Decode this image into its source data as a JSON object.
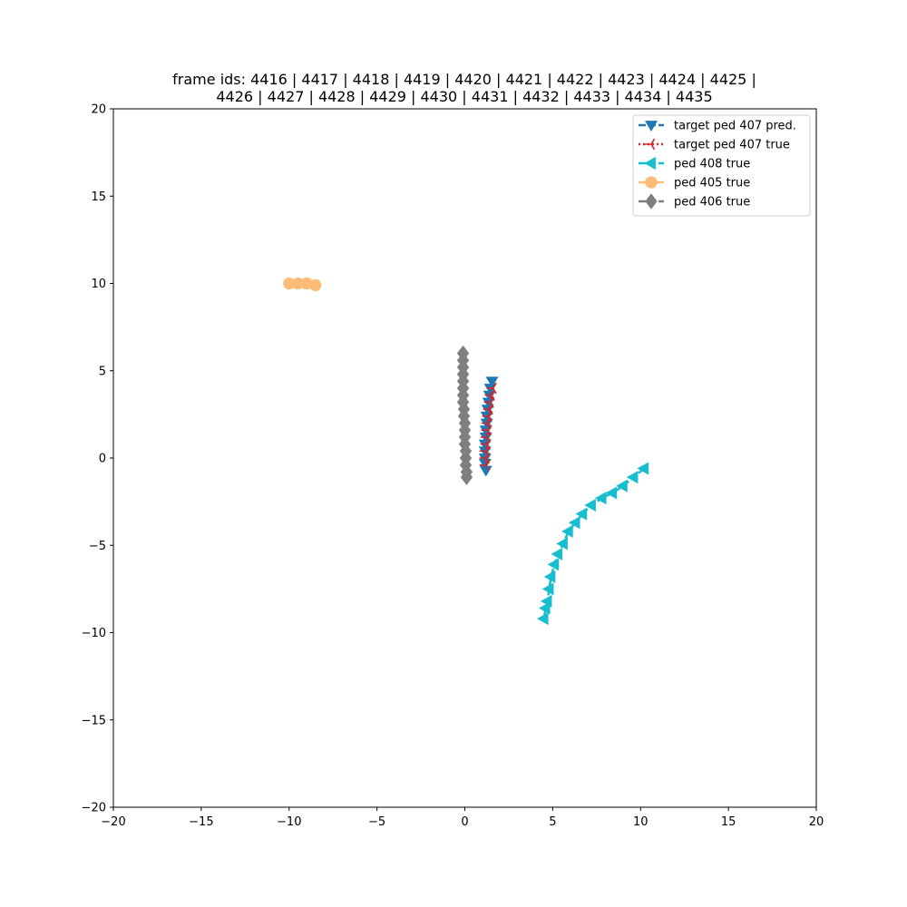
{
  "chart_data": {
    "type": "scatter",
    "title": [
      "frame ids: 4416 | 4417 | 4418 | 4419 | 4420 | 4421 | 4422 | 4423 | 4424 | 4425 |",
      "4426 | 4427 | 4428 | 4429 | 4430 | 4431 | 4432 | 4433 | 4434 | 4435"
    ],
    "xlim": [
      -20,
      20
    ],
    "ylim": [
      -20,
      20
    ],
    "xticks": [
      -20,
      -15,
      -10,
      -5,
      0,
      5,
      10,
      15,
      20
    ],
    "yticks": [
      -20,
      -15,
      -10,
      -5,
      0,
      5,
      10,
      15,
      20
    ],
    "xtick_labels": [
      "−20",
      "−15",
      "−10",
      "−5",
      "0",
      "5",
      "10",
      "15",
      "20"
    ],
    "ytick_labels": [
      "−20",
      "−15",
      "−10",
      "−5",
      "0",
      "5",
      "10",
      "15",
      "20"
    ],
    "grid": false,
    "legend_position": "top-right",
    "series": [
      {
        "name": "ped 406 true",
        "color": "#7f7f7f",
        "marker": "diamond",
        "line": "dashed",
        "points": [
          [
            -0.1,
            6.0
          ],
          [
            -0.1,
            5.6
          ],
          [
            -0.1,
            5.2
          ],
          [
            -0.1,
            4.8
          ],
          [
            -0.1,
            4.4
          ],
          [
            -0.1,
            4.0
          ],
          [
            -0.1,
            3.6
          ],
          [
            -0.1,
            3.2
          ],
          [
            -0.05,
            2.8
          ],
          [
            -0.05,
            2.4
          ],
          [
            0.0,
            2.0
          ],
          [
            0.0,
            1.6
          ],
          [
            0.0,
            1.2
          ],
          [
            0.0,
            0.8
          ],
          [
            0.05,
            0.4
          ],
          [
            0.05,
            0.0
          ],
          [
            0.05,
            -0.4
          ],
          [
            0.1,
            -0.8
          ],
          [
            0.1,
            -1.1
          ]
        ]
      },
      {
        "name": "ped 405 true",
        "color": "#ffbb78",
        "marker": "circle",
        "line": "solid",
        "points": [
          [
            -10.0,
            10.0
          ],
          [
            -9.5,
            10.0
          ],
          [
            -9.0,
            10.0
          ],
          [
            -8.5,
            9.9
          ]
        ]
      },
      {
        "name": "ped 408 true",
        "color": "#17becf",
        "marker": "triangle-left",
        "line": "dashed",
        "points": [
          [
            10.2,
            -0.6
          ],
          [
            9.6,
            -1.1
          ],
          [
            9.0,
            -1.6
          ],
          [
            8.4,
            -2.0
          ],
          [
            7.8,
            -2.3
          ],
          [
            7.2,
            -2.7
          ],
          [
            6.7,
            -3.2
          ],
          [
            6.3,
            -3.7
          ],
          [
            5.9,
            -4.2
          ],
          [
            5.6,
            -4.9
          ],
          [
            5.3,
            -5.5
          ],
          [
            5.1,
            -6.1
          ],
          [
            4.9,
            -6.8
          ],
          [
            4.8,
            -7.5
          ],
          [
            4.7,
            -8.2
          ],
          [
            4.6,
            -8.6
          ],
          [
            4.5,
            -9.2
          ]
        ]
      },
      {
        "name": "target ped 407 pred.",
        "color": "#1f77b4",
        "marker": "triangle-down",
        "line": "dashed",
        "points": [
          [
            1.55,
            4.4
          ],
          [
            1.45,
            4.0
          ],
          [
            1.4,
            3.6
          ],
          [
            1.35,
            3.2
          ],
          [
            1.3,
            2.8
          ],
          [
            1.25,
            2.4
          ],
          [
            1.25,
            2.0
          ],
          [
            1.2,
            1.6
          ],
          [
            1.2,
            1.2
          ],
          [
            1.15,
            0.8
          ],
          [
            1.15,
            0.4
          ],
          [
            1.15,
            0.0
          ],
          [
            1.15,
            -0.3
          ],
          [
            1.2,
            -0.7
          ]
        ]
      },
      {
        "name": "target ped 407 true",
        "color": "#d62728",
        "marker": "tri-left",
        "line": "dotted",
        "points": [
          [
            1.6,
            4.0
          ],
          [
            1.5,
            3.6
          ],
          [
            1.45,
            3.2
          ],
          [
            1.4,
            2.8
          ],
          [
            1.35,
            2.4
          ],
          [
            1.3,
            2.0
          ],
          [
            1.3,
            1.6
          ],
          [
            1.25,
            1.2
          ],
          [
            1.25,
            0.8
          ],
          [
            1.2,
            0.4
          ],
          [
            1.2,
            0.0
          ],
          [
            1.2,
            -0.4
          ]
        ]
      }
    ],
    "legend_order": [
      "target ped 407 pred.",
      "target ped 407 true",
      "ped 408 true",
      "ped 405 true",
      "ped 406 true"
    ]
  }
}
